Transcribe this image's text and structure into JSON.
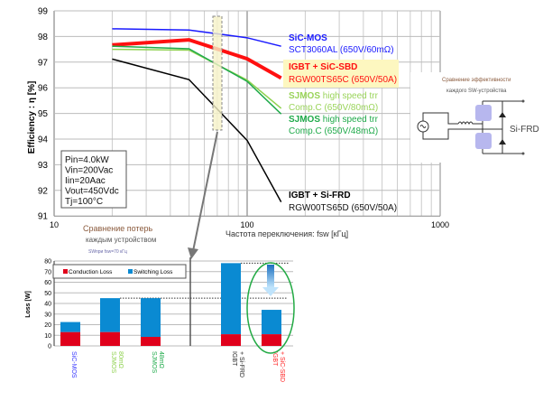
{
  "chart_data": [
    {
      "type": "line",
      "title": "",
      "xlabel": "Частота переключения: fsw [кГц]",
      "ylabel": "Efficiency : η [%]",
      "xscale": "log",
      "xlim": [
        10,
        1000
      ],
      "ylim": [
        91,
        99
      ],
      "xticks": [
        "10",
        "100",
        "1000"
      ],
      "yticks": [
        "91",
        "92",
        "93",
        "94",
        "95",
        "96",
        "97",
        "98",
        "99"
      ],
      "grid": true,
      "x": [
        20,
        50,
        100,
        150
      ],
      "series": [
        {
          "name": "SiC-MOS",
          "sub": "SCT3060AL (650V/60mΩ)",
          "color": "#1a1aff",
          "width": 1.5,
          "values": [
            98.3,
            98.25,
            97.95,
            97.62
          ]
        },
        {
          "name": "IGBT + SiC-SBD",
          "sub": "RGW00TS65C (650V/50A)",
          "color": "#ff1010",
          "width": 4,
          "values": [
            97.67,
            97.87,
            97.13,
            96.38
          ]
        },
        {
          "name": "SJMOS",
          "name2": " high speed trr",
          "sub": "Comp.C (650V/80mΩ)",
          "color": "#8fd14f",
          "width": 1.5,
          "values": [
            97.5,
            97.47,
            96.3,
            95.2
          ]
        },
        {
          "name": "SJMOS",
          "name2": " high speed trr",
          "sub": "Comp.C (650V/48mΩ)",
          "color": "#1faa4a",
          "width": 1.5,
          "values": [
            97.62,
            97.52,
            96.25,
            94.98
          ]
        },
        {
          "name": "IGBT + Si-FRD",
          "sub": "RGW00TS65D (650V/50A)",
          "color": "#000000",
          "width": 1.5,
          "values": [
            97.12,
            96.32,
            93.95,
            91.55
          ]
        }
      ],
      "conditions": [
        "Pin=4.0kW",
        "Vin=200Vac",
        "Iin=20Aac",
        "Vout=450Vdc",
        "Tj=100°C"
      ],
      "highlight_fsw": 70
    },
    {
      "type": "bar",
      "stacked": true,
      "ylabel": "Loss [W]",
      "ylim": [
        0,
        80
      ],
      "yticks": [
        "0",
        "10",
        "20",
        "30",
        "40",
        "50",
        "60",
        "70",
        "80"
      ],
      "legend": [
        "Conduction Loss",
        "Switching Loss"
      ],
      "legend_colors": [
        "#e0001b",
        "#0a8ad2"
      ],
      "categories": [
        {
          "l1": "SiC-MOS",
          "l2": "",
          "color": "#3333ff"
        },
        {
          "l1": "SJMOS",
          "l2": "80mΩ",
          "color": "#8fd14f"
        },
        {
          "l1": "SJMOS",
          "l2": "48mΩ",
          "color": "#1faa4a"
        },
        {
          "l1": "IGBT",
          "l2": "+ Si-FRD",
          "color": "#222222"
        },
        {
          "l1": "IGBT",
          "l2": "+ SiC-SBD",
          "color": "#ff2020"
        }
      ],
      "conduction": [
        13,
        13,
        8.5,
        11,
        11
      ],
      "switching": [
        9.5,
        32,
        36.5,
        67,
        23
      ],
      "reference_lines": [
        45,
        78
      ]
    }
  ],
  "texts": {
    "loss_title1": "Сравнение потерь",
    "loss_title2": "каждым устройством",
    "loss_title3": "SWпри fsw=70 кГц",
    "circuit_title1": "Сравнение эффективности",
    "circuit_title2": "каждого SW-устройства",
    "circuit_label": "Si-FRD"
  }
}
